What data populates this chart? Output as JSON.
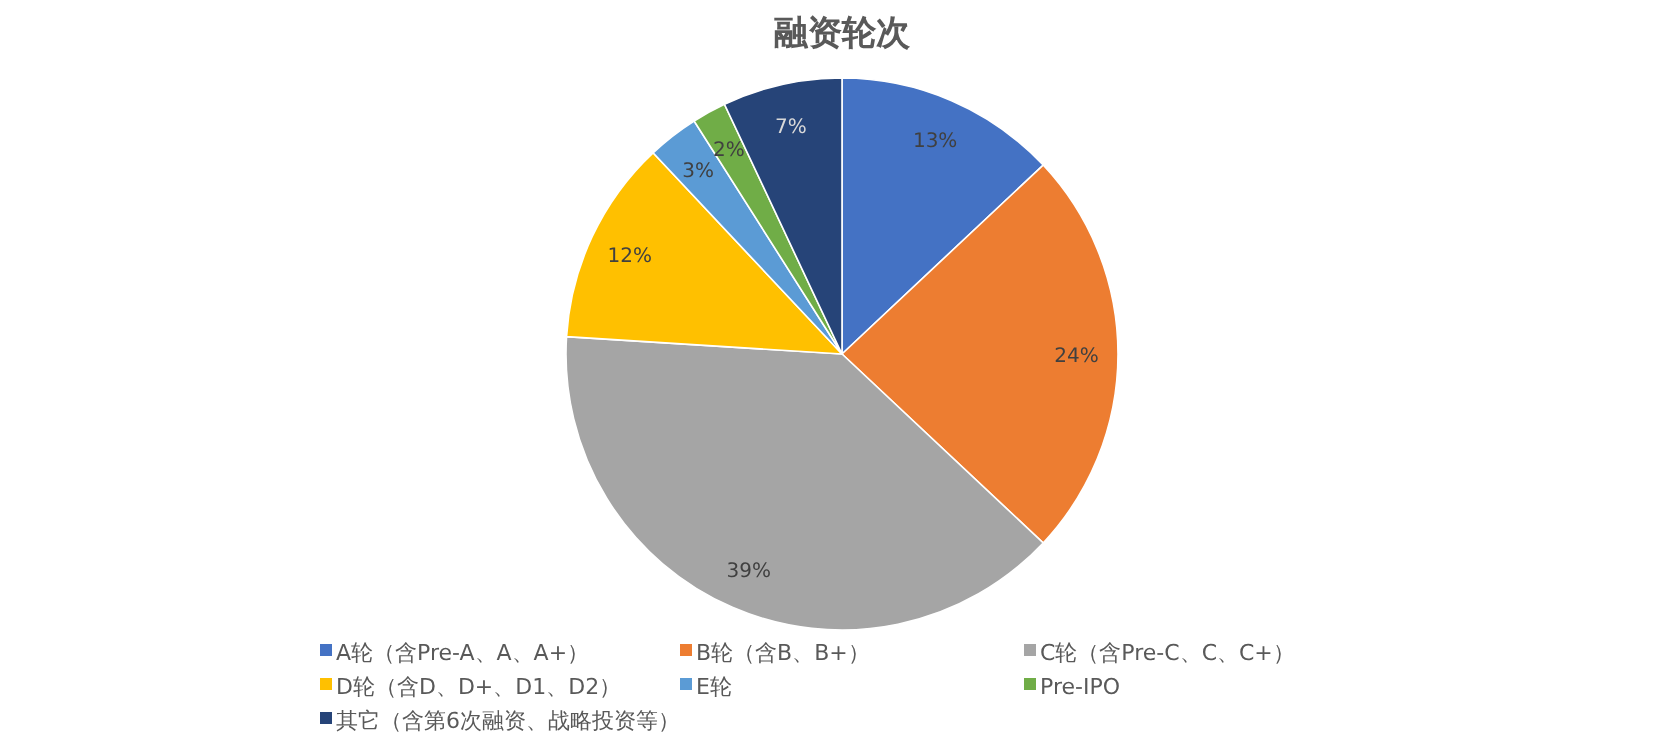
{
  "chart_data": {
    "type": "pie",
    "title": "融资轮次",
    "categories": [
      "A轮（含Pre-A、A、A+）",
      "B轮（含B、B+）",
      "C轮（含Pre-C、C、C+）",
      "D轮（含D、D+、D1、D2）",
      "E轮",
      "Pre-IPO",
      "其它（含第6次融资、战略投资等）"
    ],
    "values": [
      13,
      24,
      39,
      12,
      3,
      2,
      7
    ],
    "colors": [
      "#4472c4",
      "#ed7d31",
      "#a5a5a5",
      "#ffc000",
      "#5b9bd5",
      "#70ad47",
      "#264478"
    ],
    "value_labels": [
      "13%",
      "24%",
      "39%",
      "12%",
      "3%",
      "2%",
      "7%"
    ],
    "legend": "bottom"
  }
}
